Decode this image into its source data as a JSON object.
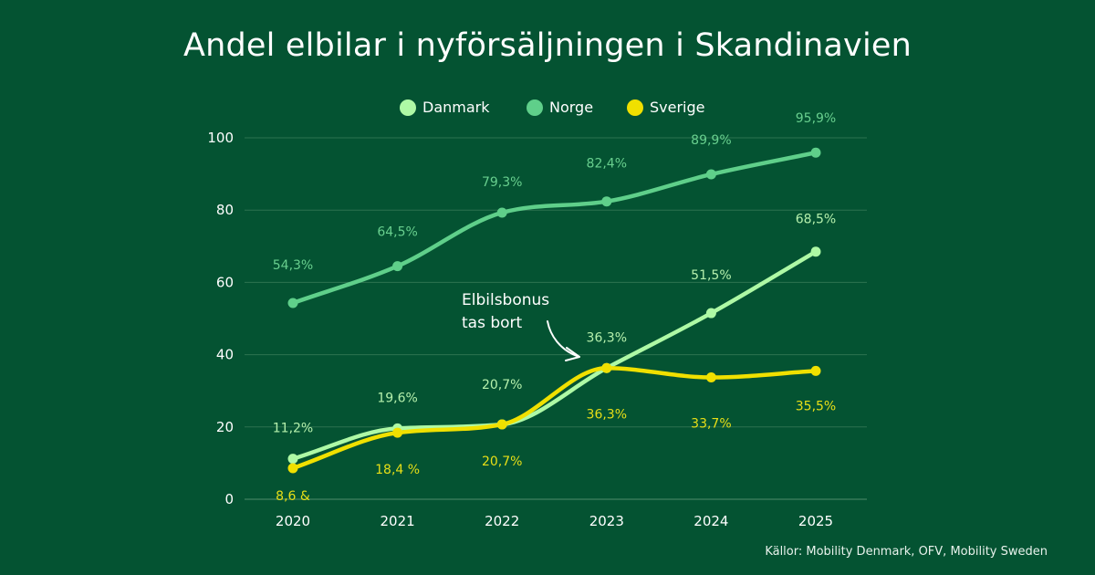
{
  "chart_data": {
    "type": "line",
    "title": "Andel elbilar i nyförsäljningen i Skandinavien",
    "xlabel": "",
    "ylabel": "",
    "x": [
      "2020",
      "2021",
      "2022",
      "2023",
      "2024",
      "2025"
    ],
    "ylim": [
      0,
      100
    ],
    "yticks": [
      "0",
      "20",
      "40",
      "60",
      "80",
      "100"
    ],
    "grid": true,
    "legend_position": "top-center",
    "series": [
      {
        "name": "Danmark",
        "color": "#aef9a5",
        "label_color": "#b5f0ac",
        "values": [
          11.2,
          19.6,
          20.7,
          36.3,
          51.5,
          68.5
        ],
        "labels": [
          "11,2%",
          "19,6%",
          "20,7%",
          "36,3%",
          "51,5%",
          "68,5%"
        ]
      },
      {
        "name": "Norge",
        "color": "#5fcf8a",
        "label_color": "#68cf8e",
        "values": [
          54.3,
          64.5,
          79.3,
          82.4,
          89.9,
          95.9
        ],
        "labels": [
          "54,3%",
          "64,5%",
          "79,3%",
          "82,4%",
          "89,9%",
          "95,9%"
        ]
      },
      {
        "name": "Sverige",
        "color": "#f0e000",
        "label_color": "#e8df17",
        "values": [
          8.6,
          18.4,
          20.7,
          36.3,
          33.7,
          35.5
        ],
        "labels": [
          "8,6 &",
          "18,4 %",
          "20,7%",
          "36,3%",
          "33,7%",
          "35,5%"
        ]
      }
    ],
    "annotations": [
      {
        "lines": [
          "Elbilsbonus",
          "tas bort"
        ],
        "target_x": "2023"
      }
    ]
  },
  "source": "Källor: Mobility Denmark, OFV, Mobility Sweden"
}
